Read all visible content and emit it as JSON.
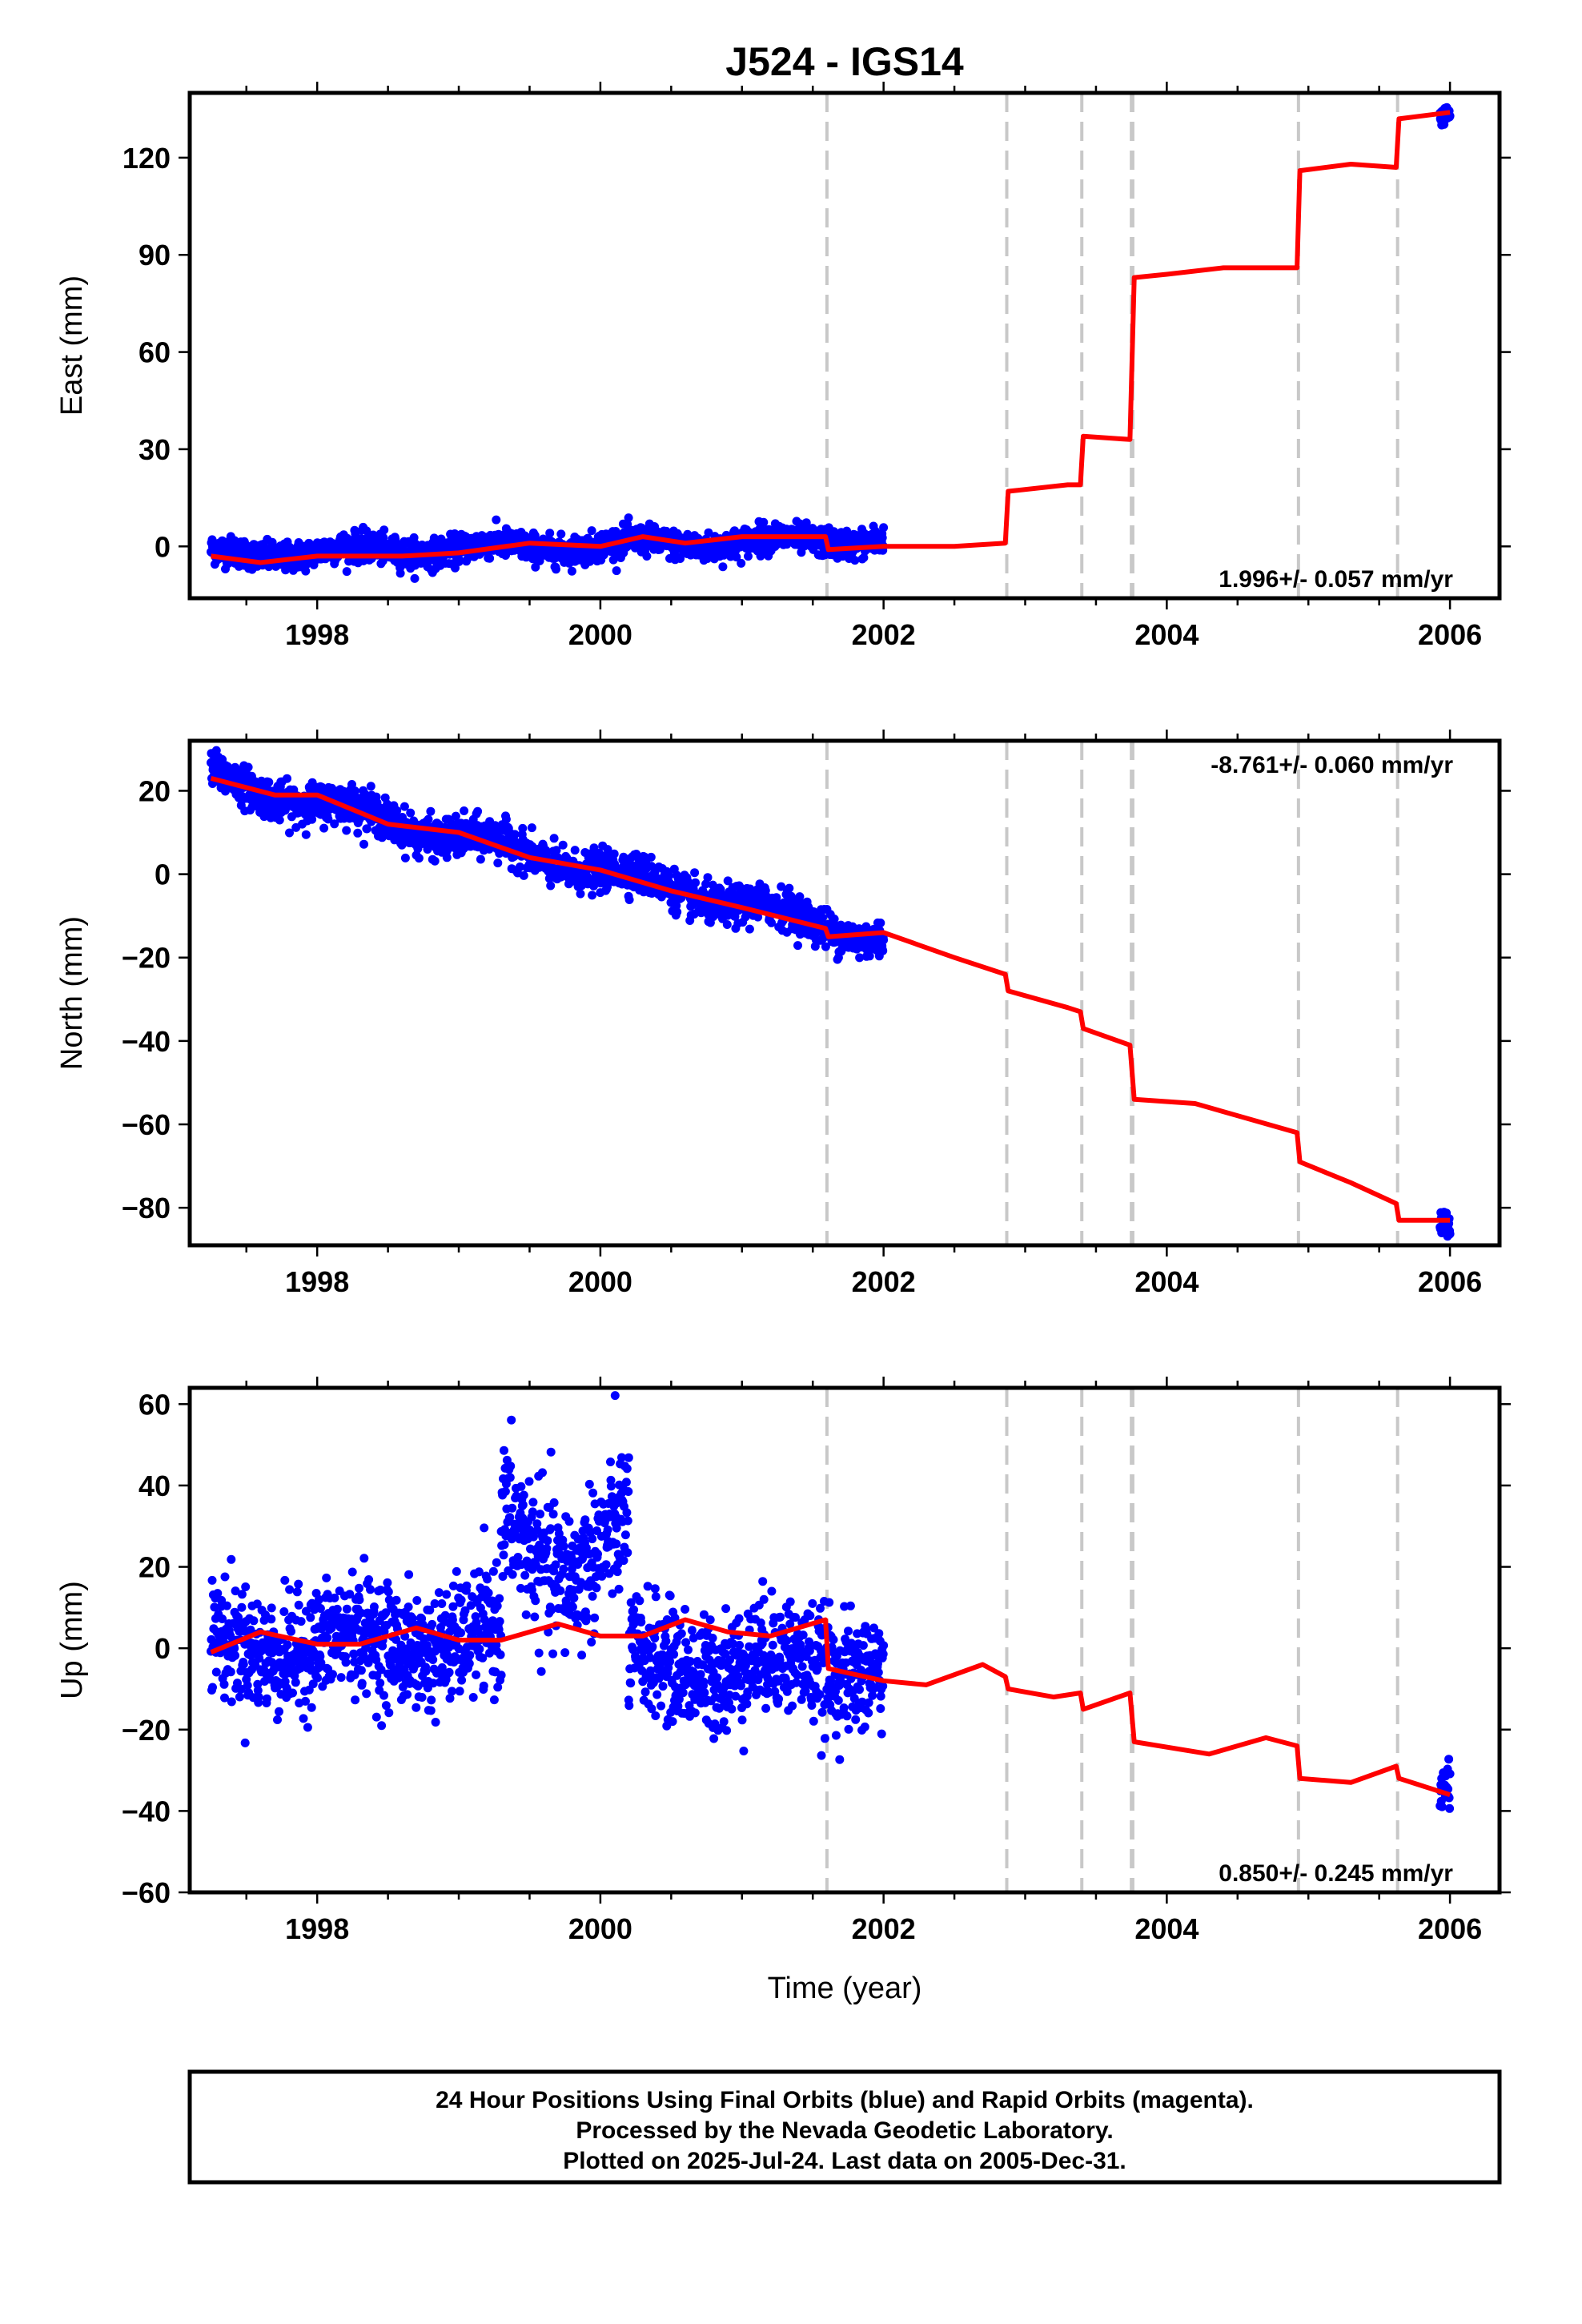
{
  "title": "J524 - IGS14",
  "xlabel": "Time (year)",
  "footer": {
    "line1": "24 Hour Positions Using Final Orbits (blue) and Rapid Orbits (magenta).",
    "line2": "Processed by the Nevada Geodetic Laboratory.",
    "line3": "Plotted on 2025-Jul-24. Last data on 2005-Dec-31."
  },
  "colors": {
    "points": "#0000ff",
    "model": "#ff0000",
    "offsets": "#c8c8c8"
  },
  "chart_data": [
    {
      "type": "scatter",
      "ylabel": "East (mm)",
      "rate": "1.996+/- 0.057 mm/yr",
      "rate_position": "bottom-right",
      "xlim": [
        1997.1,
        2006.35
      ],
      "ylim": [
        -16,
        140
      ],
      "x_ticks": [
        "1998",
        "2000",
        "2002",
        "2004",
        "2006"
      ],
      "y_ticks": [
        "0",
        "30",
        "60",
        "90",
        "120"
      ],
      "offset_epochs": [
        2001.6,
        2002.87,
        2003.4,
        2003.75,
        2003.76,
        2004.93,
        2005.63
      ],
      "model": {
        "x": [
          1997.25,
          1997.6,
          1998.0,
          1998.6,
          1999.0,
          1999.5,
          2000.0,
          2000.3,
          2000.6,
          2001.0,
          2001.59,
          2001.61,
          2002.0,
          2002.5,
          2002.86,
          2002.88,
          2003.3,
          2003.39,
          2003.41,
          2003.74,
          2003.77,
          2004.0,
          2004.4,
          2004.92,
          2004.94,
          2005.3,
          2005.62,
          2005.64,
          2006.0
        ],
        "y": [
          -3,
          -5,
          -3,
          -3,
          -2,
          1,
          0,
          3,
          1,
          3,
          3,
          -1,
          0,
          0,
          1,
          17,
          19,
          19,
          34,
          33,
          83,
          84,
          86,
          86,
          116,
          118,
          117,
          132,
          134
        ]
      },
      "data_segments": [
        {
          "x0": 1997.25,
          "x1": 2002.0,
          "y0": -2.5,
          "slope": 1.0,
          "seasonal": 1.5,
          "scatter": 2.2
        },
        {
          "x0": 2005.93,
          "x1": 2006.0,
          "y0": 133,
          "slope": 0,
          "seasonal": 0,
          "scatter": 1.3
        }
      ]
    },
    {
      "type": "scatter",
      "ylabel": "North (mm)",
      "rate": "-8.761+/- 0.060 mm/yr",
      "rate_position": "top-right",
      "xlim": [
        1997.1,
        2006.35
      ],
      "ylim": [
        -89,
        32
      ],
      "x_ticks": [
        "1998",
        "2000",
        "2002",
        "2004",
        "2006"
      ],
      "y_ticks": [
        "20",
        "0",
        "−20",
        "−40",
        "−60",
        "−80"
      ],
      "offset_epochs": [
        2001.6,
        2002.87,
        2003.4,
        2003.75,
        2003.76,
        2004.93,
        2005.63
      ],
      "model": {
        "x": [
          1997.25,
          1997.7,
          1998.0,
          1998.5,
          1999.0,
          1999.5,
          2000.0,
          2000.5,
          2001.0,
          2001.59,
          2001.61,
          2002.0,
          2002.5,
          2002.86,
          2002.88,
          2003.3,
          2003.39,
          2003.41,
          2003.74,
          2003.77,
          2004.2,
          2004.92,
          2004.94,
          2005.3,
          2005.62,
          2005.64,
          2006.0
        ],
        "y": [
          23,
          19,
          19,
          12,
          10,
          4,
          1,
          -4,
          -8,
          -13,
          -15,
          -14,
          -20,
          -24,
          -28,
          -32,
          -33,
          -37,
          -41,
          -54,
          -55,
          -62,
          -69,
          -74,
          -79,
          -83,
          -83
        ]
      },
      "data_segments": [
        {
          "x0": 1997.25,
          "x1": 2002.0,
          "y0": 23,
          "slope": -8.1,
          "seasonal": 1.8,
          "scatter": 2.3
        },
        {
          "x0": 2005.93,
          "x1": 2006.0,
          "y0": -83,
          "slope": 0,
          "seasonal": 0,
          "scatter": 1.5
        }
      ]
    },
    {
      "type": "scatter",
      "ylabel": "Up (mm)",
      "rate": "0.850+/- 0.245 mm/yr",
      "rate_position": "bottom-right",
      "xlim": [
        1997.1,
        2006.35
      ],
      "ylim": [
        -60,
        64
      ],
      "x_ticks": [
        "1998",
        "2000",
        "2002",
        "2004",
        "2006"
      ],
      "y_ticks": [
        "60",
        "40",
        "20",
        "0",
        "−20",
        "−40",
        "−60"
      ],
      "offset_epochs": [
        2001.6,
        2002.87,
        2003.4,
        2003.75,
        2003.76,
        2004.93,
        2005.63
      ],
      "model": {
        "x": [
          1997.25,
          1997.6,
          1998.0,
          1998.3,
          1998.7,
          1999.0,
          1999.3,
          1999.7,
          2000.0,
          2000.3,
          2000.6,
          2000.9,
          2001.2,
          2001.59,
          2001.61,
          2002.0,
          2002.3,
          2002.7,
          2002.86,
          2002.88,
          2003.2,
          2003.39,
          2003.41,
          2003.74,
          2003.77,
          2004.3,
          2004.7,
          2004.92,
          2004.94,
          2005.3,
          2005.62,
          2005.64,
          2006.0
        ],
        "y": [
          -1,
          4,
          1,
          1,
          5,
          2,
          2,
          6,
          3,
          3,
          7,
          4,
          3,
          7,
          -5,
          -8,
          -9,
          -4,
          -7,
          -10,
          -12,
          -11,
          -15,
          -11,
          -23,
          -26,
          -22,
          -24,
          -32,
          -33,
          -29,
          -32,
          -36
        ]
      },
      "data_segments": [
        {
          "x0": 1997.25,
          "x1": 1999.3,
          "y0": 0,
          "slope": 1.0,
          "seasonal": 3,
          "scatter": 7
        },
        {
          "x0": 1999.3,
          "x1": 2000.2,
          "y0": 25,
          "slope": 0,
          "seasonal": 8,
          "scatter": 9
        },
        {
          "x0": 2000.2,
          "x1": 2002.0,
          "y0": -4,
          "slope": 0,
          "seasonal": 3,
          "scatter": 7
        },
        {
          "x0": 2005.93,
          "x1": 2006.0,
          "y0": -35,
          "slope": 0,
          "seasonal": 0,
          "scatter": 3
        }
      ]
    }
  ]
}
